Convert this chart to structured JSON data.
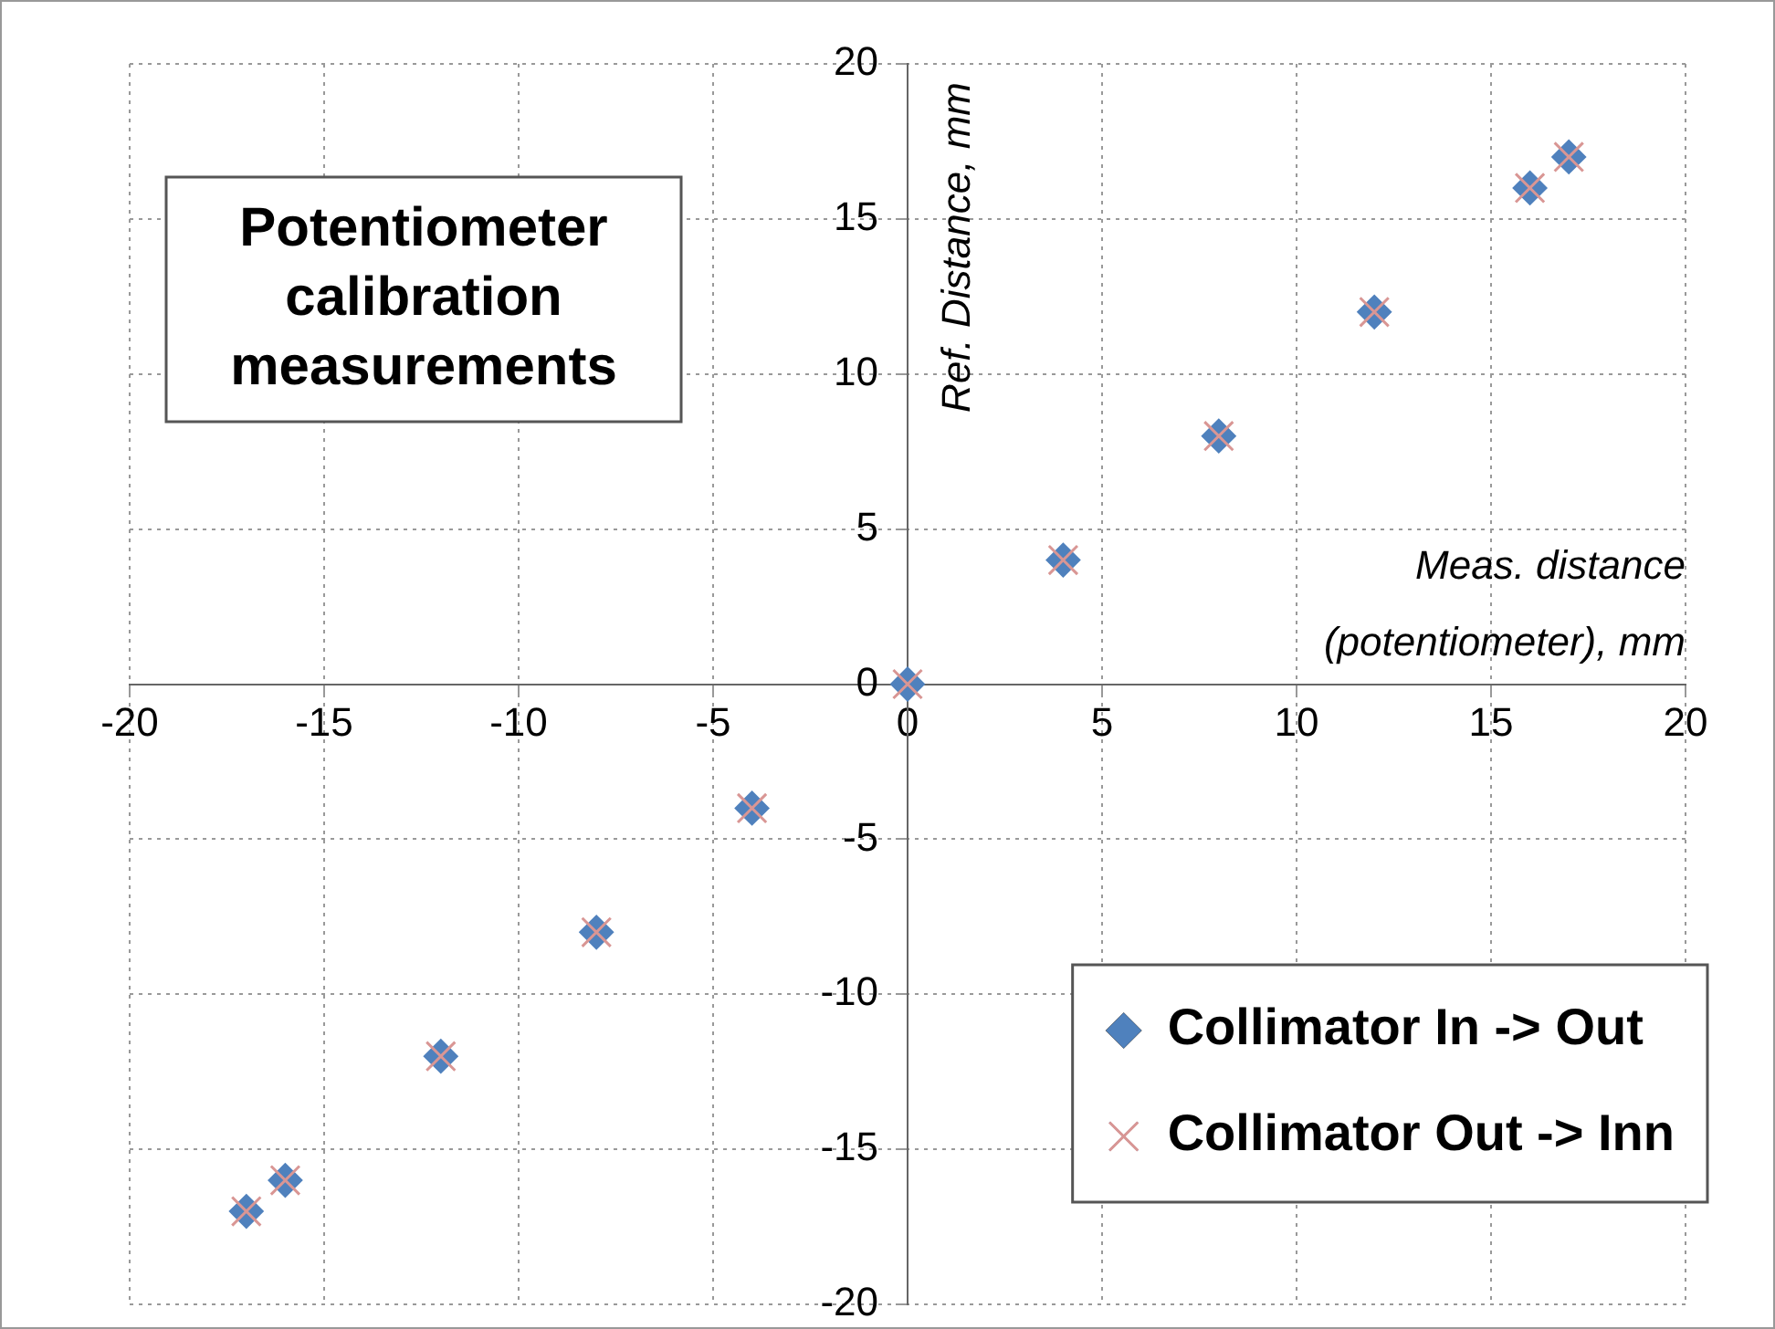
{
  "chart_data": {
    "type": "scatter",
    "title": "Potentiometer calibration measurements",
    "xlabel": "Meas. distance (potentiometer), mm",
    "ylabel": "Ref. Distance, mm",
    "xlim": [
      -20,
      20
    ],
    "ylim": [
      -20,
      20
    ],
    "xticks": [
      -20,
      -15,
      -10,
      -5,
      0,
      5,
      10,
      15,
      20
    ],
    "yticks": [
      -20,
      -15,
      -10,
      -5,
      0,
      5,
      10,
      15,
      20
    ],
    "grid": true,
    "legend": "bottom right",
    "x": [
      -17,
      -16,
      -12,
      -8,
      -4,
      0,
      4,
      8,
      12,
      16,
      17
    ],
    "series": [
      {
        "name": "Collimator In -> Out",
        "color": "#4f81bd",
        "marker": "diamond",
        "values": [
          -17,
          -16,
          -12,
          -8,
          -4,
          0,
          4,
          8,
          12,
          16,
          17
        ]
      },
      {
        "name": "Collimator Out -> Inn",
        "color": "#d99694",
        "marker": "cross",
        "values": [
          -17,
          -16,
          -12,
          -8,
          -4,
          0,
          4,
          8,
          12,
          16,
          17
        ]
      }
    ]
  }
}
